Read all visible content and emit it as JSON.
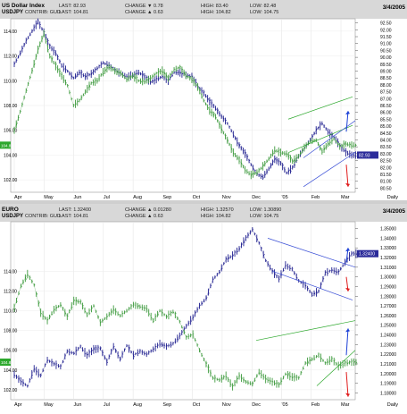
{
  "colors": {
    "navy": "#1f1f8f",
    "green": "#3d9a3d",
    "header_bg": "#d8d8d8",
    "tag_bg": "#2b2b9a",
    "arrow_up": "#1a3fd6",
    "arrow_down": "#e01b1b",
    "channel": "#2da82d",
    "channel_blue": "#3a4fd6"
  },
  "chart_data": [
    {
      "type": "line",
      "title": "US Dollar Index",
      "subtitle": "USDJPY",
      "header": {
        "row1": [
          "LAST: 82.93",
          "CHANGE ▼ 0.78",
          "HIGH: 83.40",
          "LOW: 82.48"
        ],
        "row2": [
          "CONTRIB: GUD",
          "LAST: 104.81",
          "CHANGE ▲ 0.63",
          "HIGH: 104.82",
          "LOW: 104.75"
        ]
      },
      "date": "3/4/2005",
      "left_label": "104.81",
      "right_label": "82.93",
      "months": [
        "Apr",
        "May",
        "Jun",
        "Jul",
        "Aug",
        "Sep",
        "Oct",
        "Nov",
        "Dec",
        "'05",
        "Feb",
        "Mar",
        "Daily"
      ],
      "left_ticks": [
        "114.00",
        "112.00",
        "110.00",
        "108.00",
        "106.00",
        "104.00",
        "102.00"
      ],
      "right_ticks": [
        "92.50",
        "92.00",
        "91.50",
        "91.00",
        "90.50",
        "90.00",
        "89.50",
        "89.00",
        "88.50",
        "88.00",
        "87.50",
        "87.00",
        "86.50",
        "86.00",
        "85.50",
        "85.00",
        "84.50",
        "84.00",
        "83.50",
        "83.00",
        "82.50",
        "82.00",
        "81.50",
        "81.00",
        "80.50"
      ],
      "series": [
        {
          "name": "US Dollar Index",
          "values": [
            89.5,
            90.3,
            91.2,
            91.9,
            92.6,
            91.8,
            90.8,
            90.3,
            89.4,
            89.0,
            88.5,
            88.9,
            88.6,
            88.8,
            89.2,
            89.6,
            89.4,
            89.1,
            88.8,
            88.6,
            88.7,
            88.9,
            88.6,
            88.2,
            88.4,
            88.6,
            88.3,
            88.9,
            88.9,
            88.7,
            88.6,
            87.9,
            87.4,
            86.8,
            86.3,
            85.7,
            85.2,
            84.4,
            83.6,
            83.0,
            82.2,
            81.5,
            81.3,
            81.9,
            82.6,
            82.3,
            81.6,
            82.0,
            82.8,
            83.4,
            84.0,
            84.7,
            85.2,
            84.6,
            84.2,
            83.6,
            83.1,
            82.9
          ]
        },
        {
          "name": "USDJPY",
          "values": [
            106.0,
            107.5,
            109.2,
            110.8,
            112.5,
            113.8,
            112.0,
            111.2,
            110.4,
            109.6,
            108.0,
            108.4,
            109.1,
            109.8,
            110.0,
            110.7,
            111.1,
            110.8,
            110.6,
            110.1,
            110.4,
            110.0,
            109.9,
            110.2,
            110.6,
            110.8,
            110.2,
            110.9,
            111.1,
            110.4,
            110.1,
            109.5,
            108.4,
            107.6,
            107.1,
            106.1,
            105.2,
            104.2,
            103.6,
            102.8,
            102.4,
            102.6,
            103.1,
            103.7,
            104.4,
            104.2,
            104.1,
            103.5,
            103.9,
            104.6,
            105.1,
            105.2,
            104.3,
            104.9,
            105.3,
            104.7,
            104.9,
            104.8
          ]
        }
      ]
    },
    {
      "type": "line",
      "title": "EURO",
      "subtitle": "USDJPY",
      "header": {
        "row1": [
          "LAST: 1.32400",
          "CHANGE ▲ 0.01280",
          "HIGH: 1.32570",
          "LOW: 1.30890"
        ],
        "row2": [
          "CONTRIB: GUD",
          "LAST: 104.81",
          "CHANGE ▲ 0.63",
          "HIGH: 104.82",
          "LOW: 104.75"
        ]
      },
      "date": "3/4/2005",
      "left_label": "104.81",
      "right_label": "1.32400",
      "months": [
        "Apr",
        "May",
        "Jun",
        "Jul",
        "Aug",
        "Sep",
        "Oct",
        "Nov",
        "Dec",
        "'05",
        "Feb",
        "Mar",
        "Daily"
      ],
      "left_ticks": [
        "114.00",
        "112.00",
        "110.00",
        "108.00",
        "106.00",
        "104.00",
        "102.00"
      ],
      "right_ticks": [
        "1.35000",
        "1.34000",
        "1.33000",
        "1.32000",
        "1.31000",
        "1.30000",
        "1.29000",
        "1.28000",
        "1.27000",
        "1.26000",
        "1.25000",
        "1.24000",
        "1.23000",
        "1.22000",
        "1.21000",
        "1.20000",
        "1.19000",
        "1.18000"
      ],
      "series": [
        {
          "name": "EURO",
          "values": [
            1.199,
            1.192,
            1.187,
            1.205,
            1.198,
            1.214,
            1.21,
            1.207,
            1.223,
            1.221,
            1.228,
            1.219,
            1.225,
            1.226,
            1.212,
            1.228,
            1.215,
            1.229,
            1.219,
            1.223,
            1.22,
            1.225,
            1.231,
            1.228,
            1.231,
            1.239,
            1.249,
            1.258,
            1.27,
            1.278,
            1.297,
            1.305,
            1.318,
            1.322,
            1.329,
            1.34,
            1.349,
            1.335,
            1.317,
            1.306,
            1.298,
            1.312,
            1.308,
            1.296,
            1.291,
            1.282,
            1.285,
            1.304,
            1.307,
            1.305,
            1.315,
            1.324
          ]
        },
        {
          "name": "USDJPY",
          "values": [
            110.3,
            112.5,
            113.7,
            112.6,
            109.8,
            109.0,
            110.1,
            110.6,
            109.4,
            111.0,
            110.9,
            109.6,
            110.5,
            108.8,
            109.4,
            110.1,
            109.5,
            110.0,
            110.6,
            110.4,
            110.2,
            109.0,
            110.0,
            109.4,
            109.9,
            108.9,
            107.3,
            107.6,
            106.0,
            104.6,
            103.2,
            103.0,
            103.4,
            102.3,
            103.4,
            102.8,
            102.6,
            103.8,
            103.1,
            102.8,
            102.5,
            103.6,
            103.3,
            103.2,
            104.7,
            105.1,
            105.5,
            104.7,
            105.1,
            104.4,
            104.7,
            104.8
          ]
        }
      ]
    }
  ]
}
